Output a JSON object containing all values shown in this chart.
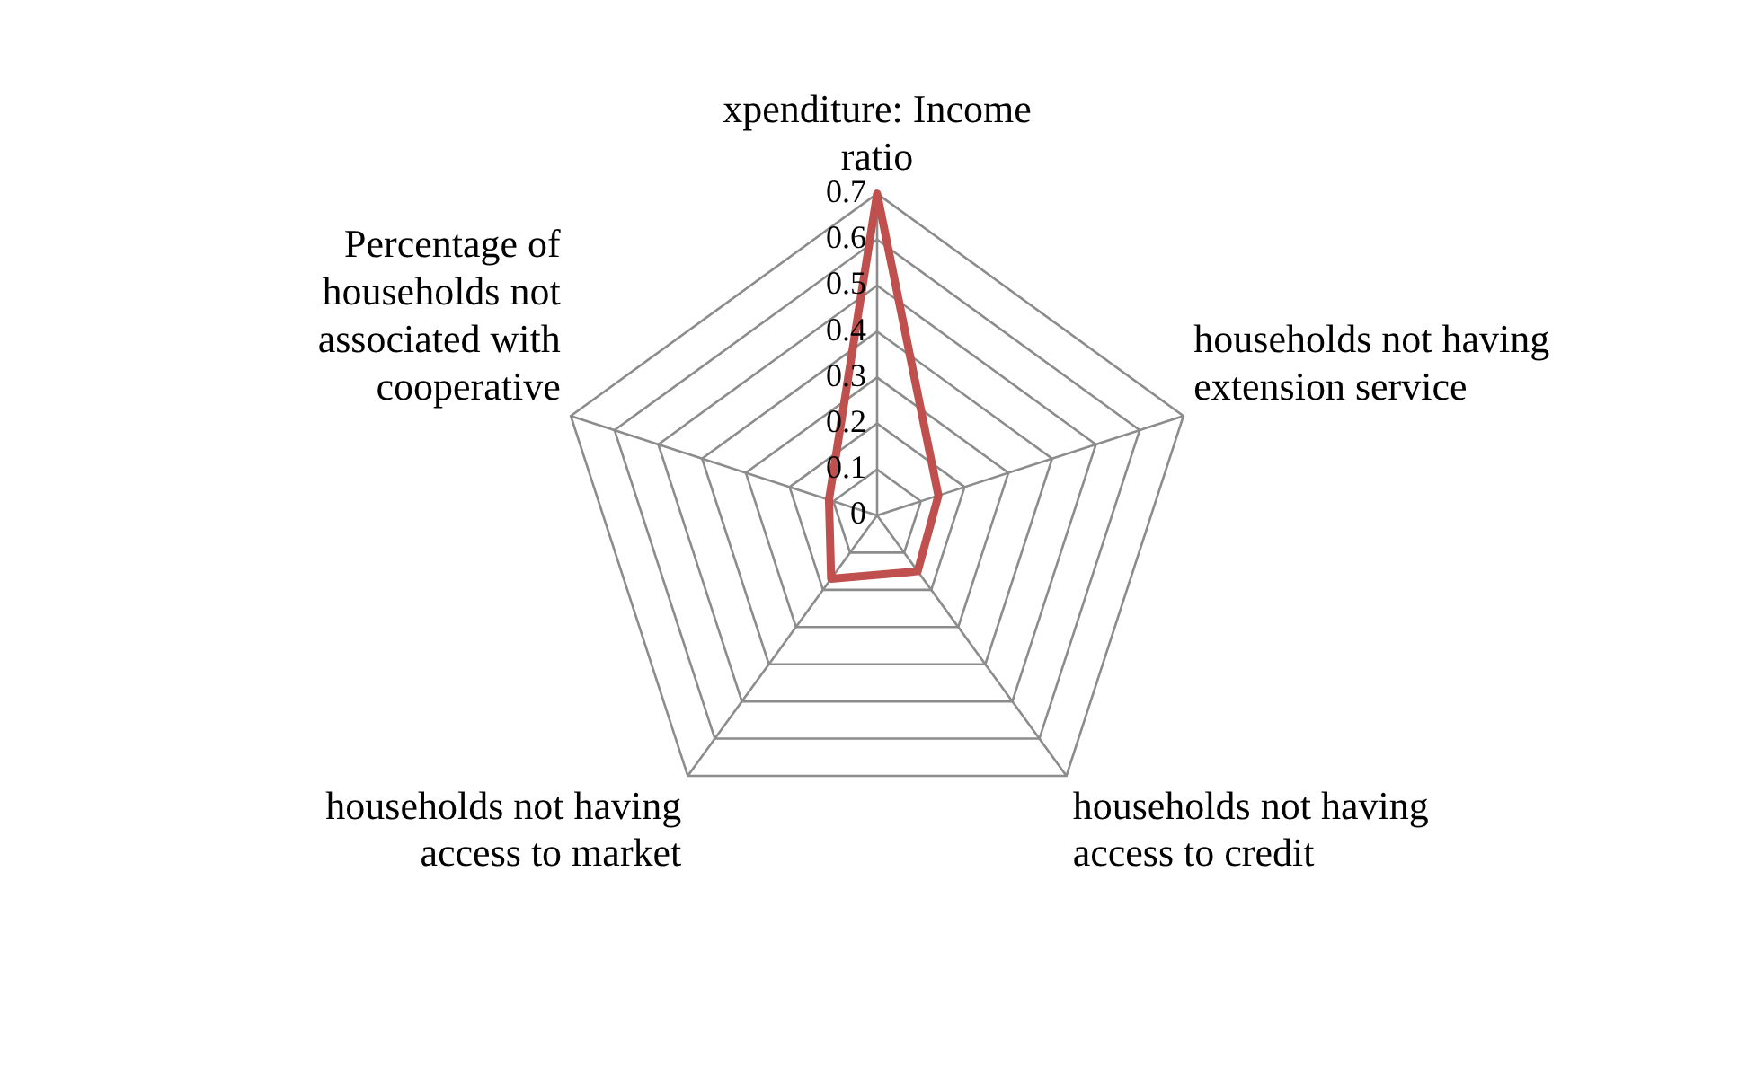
{
  "chart_data": {
    "type": "radar",
    "categories": [
      "xpenditure: Income ratio",
      "households not having extension service",
      "households not having access to credit",
      "households not having access to market",
      "Percentage of households not associated with cooperative"
    ],
    "series": [
      {
        "color": "#c0504d",
        "values": [
          0.7,
          0.14,
          0.15,
          0.17,
          0.11
        ]
      }
    ],
    "ylim": [
      0,
      0.7
    ],
    "yticks": [
      0,
      0.1,
      0.2,
      0.3,
      0.4,
      0.5,
      0.6,
      0.7
    ],
    "grid": true,
    "legend": false,
    "marker": "none"
  }
}
